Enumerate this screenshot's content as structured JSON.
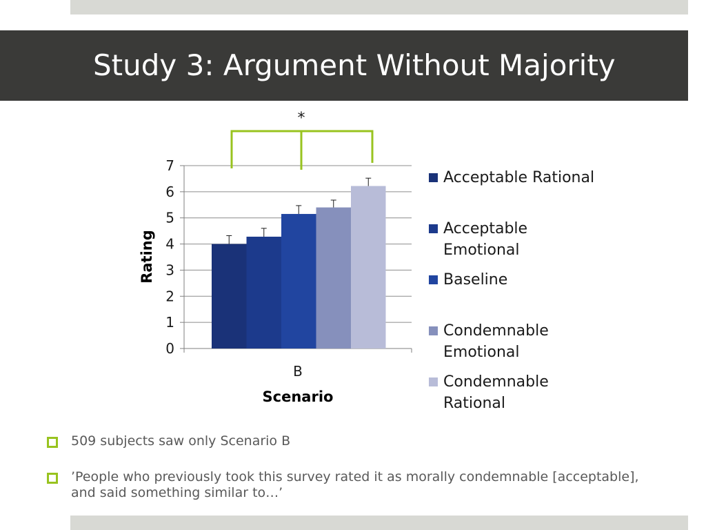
{
  "slide": {
    "title": "Study 3: Argument Without Majority",
    "bullets": [
      "509 subjects saw only Scenario B",
      "’People who previously took this survey rated it as morally condemnable [acceptable], and said something similar to…’"
    ],
    "colors": {
      "title_bar": "#3a3a38",
      "accent": "#98c31f",
      "band": "#d8d9d4"
    }
  },
  "chart_data": {
    "type": "bar",
    "categories": [
      "B"
    ],
    "series": [
      {
        "name": "Acceptable Rational",
        "values": [
          4.0
        ],
        "error": [
          0.32
        ],
        "color": "#1a3278"
      },
      {
        "name": "Acceptable Emotional",
        "values": [
          4.28
        ],
        "error": [
          0.32
        ],
        "color": "#1c3a8c"
      },
      {
        "name": "Baseline",
        "values": [
          5.15
        ],
        "error": [
          0.32
        ],
        "color": "#2145a0"
      },
      {
        "name": "Condemnable Emotional",
        "values": [
          5.4
        ],
        "error": [
          0.28
        ],
        "color": "#8690bc"
      },
      {
        "name": "Condemnable Rational",
        "values": [
          6.22
        ],
        "error": [
          0.3
        ],
        "color": "#b8bcd8"
      }
    ],
    "category_label_prefix": "",
    "xlabel": "Scenario",
    "ylabel": "Rating",
    "ylim": [
      0,
      7
    ],
    "yticks": [
      "0",
      "1",
      "2",
      "3",
      "4",
      "5",
      "6",
      "7"
    ],
    "grid": true,
    "legend_position": "right",
    "significance_marker": "*"
  }
}
